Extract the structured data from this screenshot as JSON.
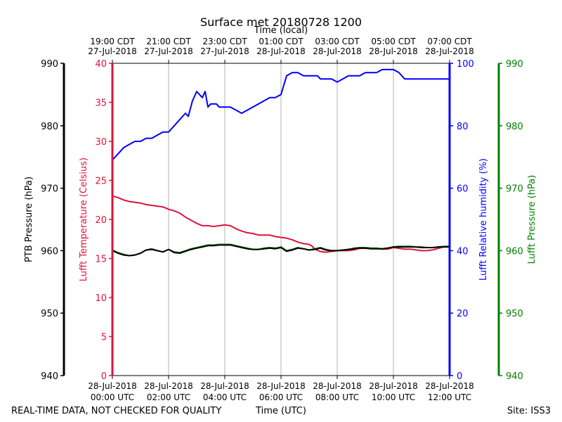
{
  "chart_data": {
    "type": "line",
    "title": "Surface met 20180728 1200",
    "top_xlabel": "Time (local)",
    "xlabel": "Time (UTC)",
    "footer_left": "REAL-TIME DATA, NOT CHECKED FOR QUALITY",
    "footer_right": "Site: ISS3",
    "grid": "vertical",
    "xlim_hours": [
      0,
      12
    ],
    "x_ticks": [
      {
        "hour": 0,
        "utc_date": "28-Jul-2018",
        "utc_time": "00:00 UTC",
        "local_time": "19:00 CDT",
        "local_date": "27-Jul-2018"
      },
      {
        "hour": 2,
        "utc_date": "28-Jul-2018",
        "utc_time": "02:00 UTC",
        "local_time": "21:00 CDT",
        "local_date": "27-Jul-2018"
      },
      {
        "hour": 4,
        "utc_date": "28-Jul-2018",
        "utc_time": "04:00 UTC",
        "local_time": "23:00 CDT",
        "local_date": "27-Jul-2018"
      },
      {
        "hour": 6,
        "utc_date": "28-Jul-2018",
        "utc_time": "06:00 UTC",
        "local_time": "01:00 CDT",
        "local_date": "28-Jul-2018"
      },
      {
        "hour": 8,
        "utc_date": "28-Jul-2018",
        "utc_time": "08:00 UTC",
        "local_time": "03:00 CDT",
        "local_date": "28-Jul-2018"
      },
      {
        "hour": 10,
        "utc_date": "28-Jul-2018",
        "utc_time": "10:00 UTC",
        "local_time": "05:00 CDT",
        "local_date": "28-Jul-2018"
      },
      {
        "hour": 12,
        "utc_date": "28-Jul-2018",
        "utc_time": "12:00 UTC",
        "local_time": "07:00 CDT",
        "local_date": "28-Jul-2018"
      }
    ],
    "axes": {
      "ptb": {
        "label": "PTB Pressure (hPa)",
        "min": 940,
        "max": 990,
        "ticks": [
          940,
          950,
          960,
          970,
          980,
          990
        ],
        "color": "#000000"
      },
      "temp": {
        "label": "Lufft Temperature (Celsius)",
        "min": 0,
        "max": 40,
        "ticks": [
          0,
          5,
          10,
          15,
          20,
          25,
          30,
          35,
          40
        ],
        "color": "#dc143c"
      },
      "rh": {
        "label": "Lufft Relative humidity (%)",
        "min": 0,
        "max": 100,
        "ticks": [
          0,
          20,
          40,
          60,
          80,
          100
        ],
        "color": "#0000ff"
      },
      "lp": {
        "label": "Lufft Pressure (hPa)",
        "min": 940,
        "max": 990,
        "ticks": [
          940,
          950,
          960,
          970,
          980,
          990
        ],
        "color": "#008000"
      }
    },
    "series": [
      {
        "key": "rh",
        "axis": "rh",
        "color": "#0000ff",
        "x": [
          0,
          0.2,
          0.4,
          0.6,
          0.8,
          1.0,
          1.2,
          1.4,
          1.6,
          1.8,
          2.0,
          2.2,
          2.4,
          2.6,
          2.7,
          2.85,
          3.0,
          3.1,
          3.2,
          3.3,
          3.4,
          3.5,
          3.6,
          3.7,
          3.8,
          4.0,
          4.2,
          4.4,
          4.6,
          4.8,
          5.0,
          5.2,
          5.4,
          5.6,
          5.8,
          6.0,
          6.2,
          6.4,
          6.6,
          6.8,
          7.0,
          7.1,
          7.2,
          7.3,
          7.4,
          7.6,
          7.8,
          8.0,
          8.2,
          8.4,
          8.6,
          8.8,
          9.0,
          9.2,
          9.4,
          9.6,
          9.8,
          10.0,
          10.2,
          10.4,
          10.6,
          10.8,
          11.0,
          11.2,
          11.4,
          11.6,
          11.8,
          12.0
        ],
        "values": [
          69,
          71,
          73,
          74,
          75,
          75,
          76,
          76,
          77,
          78,
          78,
          80,
          82,
          84,
          83,
          88,
          91,
          90,
          89,
          91,
          86,
          87,
          87,
          87,
          86,
          86,
          86,
          85,
          84,
          85,
          86,
          87,
          88,
          89,
          89,
          90,
          96,
          97,
          97,
          96,
          96,
          96,
          96,
          96,
          95,
          95,
          95,
          94,
          95,
          96,
          96,
          96,
          97,
          97,
          97,
          98,
          98,
          98,
          97,
          95,
          95,
          95,
          95,
          95,
          95,
          95,
          95,
          95
        ]
      },
      {
        "key": "temp",
        "axis": "temp",
        "color": "#dc143c",
        "x": [
          0,
          0.2,
          0.4,
          0.6,
          0.8,
          1.0,
          1.2,
          1.4,
          1.6,
          1.8,
          2.0,
          2.2,
          2.4,
          2.6,
          2.8,
          3.0,
          3.2,
          3.4,
          3.6,
          3.8,
          4.0,
          4.2,
          4.4,
          4.6,
          4.8,
          5.0,
          5.2,
          5.4,
          5.6,
          5.8,
          6.0,
          6.2,
          6.4,
          6.6,
          6.8,
          7.0,
          7.1,
          7.2,
          7.4,
          7.6,
          7.8,
          8.0,
          8.2,
          8.4,
          8.6,
          8.8,
          9.0,
          9.2,
          9.4,
          9.6,
          9.8,
          10.0,
          10.2,
          10.4,
          10.6,
          10.8,
          11.0,
          11.2,
          11.4,
          11.6,
          11.8,
          12.0
        ],
        "values": [
          23,
          22.8,
          22.5,
          22.3,
          22.2,
          22.1,
          21.9,
          21.8,
          21.7,
          21.6,
          21.3,
          21.1,
          20.8,
          20.3,
          19.9,
          19.5,
          19.2,
          19.2,
          19.1,
          19.2,
          19.3,
          19.2,
          18.8,
          18.5,
          18.3,
          18.2,
          18.0,
          18.0,
          18.0,
          17.8,
          17.7,
          17.6,
          17.4,
          17.1,
          16.9,
          16.8,
          16.6,
          16.2,
          15.9,
          15.8,
          15.9,
          16.0,
          16.0,
          16.0,
          16.1,
          16.3,
          16.3,
          16.3,
          16.3,
          16.2,
          16.2,
          16.4,
          16.3,
          16.2,
          16.2,
          16.1,
          16.0,
          16.0,
          16.1,
          16.3,
          16.5,
          16.6
        ]
      },
      {
        "key": "lp",
        "axis": "lp",
        "color": "#008000",
        "x": [
          0,
          0.2,
          0.4,
          0.6,
          0.8,
          1.0,
          1.2,
          1.4,
          1.6,
          1.8,
          2.0,
          2.2,
          2.4,
          2.6,
          2.8,
          3.0,
          3.2,
          3.4,
          3.6,
          3.8,
          4.0,
          4.2,
          4.4,
          4.6,
          4.8,
          5.0,
          5.2,
          5.4,
          5.6,
          5.8,
          6.0,
          6.2,
          6.4,
          6.6,
          6.8,
          7.0,
          7.2,
          7.4,
          7.6,
          7.8,
          8.0,
          8.2,
          8.4,
          8.6,
          8.8,
          9.0,
          9.2,
          9.4,
          9.6,
          9.8,
          10.0,
          10.2,
          10.4,
          10.6,
          10.8,
          11.0,
          11.2,
          11.4,
          11.6,
          11.8,
          12.0
        ],
        "values": [
          960.1,
          959.7,
          959.4,
          959.2,
          959.3,
          959.6,
          960.1,
          960.3,
          960.0,
          959.8,
          960.2,
          959.8,
          959.7,
          960.0,
          960.3,
          960.5,
          960.7,
          960.9,
          960.9,
          961.0,
          961.0,
          961.0,
          960.8,
          960.6,
          960.4,
          960.2,
          960.2,
          960.4,
          960.5,
          960.4,
          960.6,
          960.0,
          960.2,
          960.5,
          960.3,
          960.1,
          960.3,
          960.5,
          960.2,
          960.0,
          960.0,
          960.1,
          960.2,
          960.4,
          960.5,
          960.5,
          960.4,
          960.4,
          960.3,
          960.4,
          960.6,
          960.7,
          960.7,
          960.7,
          960.6,
          960.6,
          960.5,
          960.5,
          960.6,
          960.7,
          960.7
        ]
      },
      {
        "key": "ptb",
        "axis": "ptb",
        "color": "#000000",
        "x": [
          0,
          0.2,
          0.4,
          0.6,
          0.8,
          1.0,
          1.2,
          1.4,
          1.6,
          1.8,
          2.0,
          2.2,
          2.4,
          2.6,
          2.8,
          3.0,
          3.2,
          3.4,
          3.6,
          3.8,
          4.0,
          4.2,
          4.4,
          4.6,
          4.8,
          5.0,
          5.2,
          5.4,
          5.6,
          5.8,
          6.0,
          6.2,
          6.4,
          6.6,
          6.8,
          7.0,
          7.2,
          7.4,
          7.6,
          7.8,
          8.0,
          8.2,
          8.4,
          8.6,
          8.8,
          9.0,
          9.2,
          9.4,
          9.6,
          9.8,
          10.0,
          10.2,
          10.4,
          10.6,
          10.8,
          11.0,
          11.2,
          11.4,
          11.6,
          11.8,
          12.0
        ],
        "values": [
          960.0,
          959.6,
          959.3,
          959.2,
          959.3,
          959.6,
          960.1,
          960.2,
          960.0,
          959.8,
          960.2,
          959.7,
          959.6,
          959.9,
          960.2,
          960.4,
          960.6,
          960.8,
          960.8,
          960.9,
          960.9,
          960.9,
          960.7,
          960.5,
          960.3,
          960.2,
          960.2,
          960.3,
          960.4,
          960.3,
          960.5,
          959.9,
          960.1,
          960.4,
          960.3,
          960.1,
          960.2,
          960.4,
          960.1,
          960.0,
          960.0,
          960.1,
          960.2,
          960.3,
          960.4,
          960.4,
          960.3,
          960.3,
          960.3,
          960.4,
          960.6,
          960.6,
          960.6,
          960.6,
          960.6,
          960.5,
          960.5,
          960.5,
          960.6,
          960.6,
          960.6
        ]
      }
    ]
  }
}
